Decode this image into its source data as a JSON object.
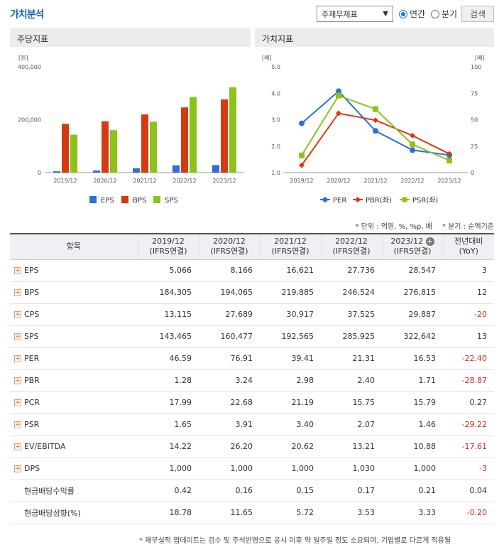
{
  "header": {
    "title": "가치분석",
    "select_value": "주재무제표",
    "radio_annual": "연간",
    "radio_quarter": "분기",
    "search_button": "검색"
  },
  "panels": {
    "left_title": "주당지표",
    "right_title": "가치지표"
  },
  "notes": {
    "unit": "* 단위 : 억원, %, %p, 배",
    "quarter": "* 분기 : 순액기준"
  },
  "table": {
    "header_item": "항목",
    "columns": [
      {
        "year": "2019/12",
        "basis": "(IFRS연결)"
      },
      {
        "year": "2020/12",
        "basis": "(IFRS연결)"
      },
      {
        "year": "2021/12",
        "basis": "(IFRS연결)"
      },
      {
        "year": "2022/12",
        "basis": "(IFRS연결)"
      },
      {
        "year": "2023/12",
        "basis": "(IFRS연결)"
      }
    ],
    "yoy_line1": "전년대비",
    "yoy_line2": "(YoY)",
    "rows": [
      {
        "label": "EPS",
        "expand": true,
        "values": [
          "5,066",
          "8,166",
          "16,621",
          "27,736",
          "28,547"
        ],
        "yoy": "3",
        "neg": false
      },
      {
        "label": "BPS",
        "expand": true,
        "values": [
          "184,305",
          "194,065",
          "219,885",
          "246,524",
          "276,815"
        ],
        "yoy": "12",
        "neg": false
      },
      {
        "label": "CPS",
        "expand": true,
        "values": [
          "13,115",
          "27,689",
          "30,917",
          "37,525",
          "29,887"
        ],
        "yoy": "-20",
        "neg": true
      },
      {
        "label": "SPS",
        "expand": true,
        "values": [
          "143,465",
          "160,477",
          "192,565",
          "285,925",
          "322,642"
        ],
        "yoy": "13",
        "neg": false
      },
      {
        "label": "PER",
        "expand": true,
        "values": [
          "46.59",
          "76.91",
          "39.41",
          "21.31",
          "16.53"
        ],
        "yoy": "-22.40",
        "neg": true
      },
      {
        "label": "PBR",
        "expand": true,
        "values": [
          "1.28",
          "3.24",
          "2.98",
          "2.40",
          "1.71"
        ],
        "yoy": "-28.87",
        "neg": true
      },
      {
        "label": "PCR",
        "expand": true,
        "values": [
          "17.99",
          "22.68",
          "21.19",
          "15.75",
          "15.79"
        ],
        "yoy": "0.27",
        "neg": false
      },
      {
        "label": "PSR",
        "expand": true,
        "values": [
          "1.65",
          "3.91",
          "3.40",
          "2.07",
          "1.46"
        ],
        "yoy": "-29.22",
        "neg": true
      },
      {
        "label": "EV/EBITDA",
        "expand": true,
        "values": [
          "14.22",
          "26.20",
          "20.62",
          "13.21",
          "10.88"
        ],
        "yoy": "-17.61",
        "neg": true
      },
      {
        "label": "DPS",
        "expand": true,
        "values": [
          "1,000",
          "1,000",
          "1,000",
          "1,030",
          "1,000"
        ],
        "yoy": "-3",
        "neg": true
      },
      {
        "label": "현금배당수익률",
        "expand": false,
        "values": [
          "0.42",
          "0.16",
          "0.15",
          "0.17",
          "0.21"
        ],
        "yoy": "0.04",
        "neg": false
      },
      {
        "label": "현금배당성향(%)",
        "expand": false,
        "values": [
          "18.78",
          "11.65",
          "5.72",
          "3.53",
          "3.33"
        ],
        "yoy": "-0.20",
        "neg": true
      }
    ]
  },
  "footnote": "* 재무실적 업데이트는 검수 및 주석반영으로 공시 이후 약 일주일 정도 소요되며, 기업별로 다르게 적용될",
  "chart_data": [
    {
      "type": "bar",
      "unit_label": "[원]",
      "categories": [
        "2019/12",
        "2020/12",
        "2021/12",
        "2022/12",
        "2023/12"
      ],
      "y_ticks": [
        "400,000",
        "200,000",
        "0"
      ],
      "ylim": [
        0,
        400000
      ],
      "series": [
        {
          "name": "EPS",
          "color": "#2f6fd6",
          "values": [
            5066,
            8166,
            16621,
            27736,
            28547
          ]
        },
        {
          "name": "BPS",
          "color": "#d63a12",
          "values": [
            184305,
            194065,
            219885,
            246524,
            276815
          ]
        },
        {
          "name": "SPS",
          "color": "#8cc21a",
          "values": [
            143465,
            160477,
            192565,
            285925,
            322642
          ]
        }
      ]
    },
    {
      "type": "line",
      "left_unit": "[배]",
      "right_unit": "[배]",
      "categories": [
        "2019/12",
        "2020/12",
        "2021/12",
        "2022/12",
        "2023/12"
      ],
      "left_ticks": [
        "5.0",
        "4.0",
        "3.0",
        "2.0",
        "1.0"
      ],
      "right_ticks": [
        "100",
        "75",
        "50",
        "25",
        "0"
      ],
      "ylim_left": [
        1,
        5
      ],
      "ylim_right": [
        0,
        100
      ],
      "series": [
        {
          "name": "PER",
          "axis": "right",
          "color": "#2f6fd6",
          "marker": "circle",
          "values": [
            46.59,
            76.91,
            39.41,
            21.31,
            16.53
          ]
        },
        {
          "name": "PBR(좌)",
          "axis": "left",
          "color": "#d63a12",
          "marker": "diamond",
          "values": [
            1.28,
            3.24,
            2.98,
            2.4,
            1.71
          ]
        },
        {
          "name": "PSR(좌)",
          "axis": "left",
          "color": "#8cc21a",
          "marker": "square",
          "values": [
            1.65,
            3.91,
            3.4,
            2.07,
            1.46
          ]
        }
      ]
    }
  ]
}
